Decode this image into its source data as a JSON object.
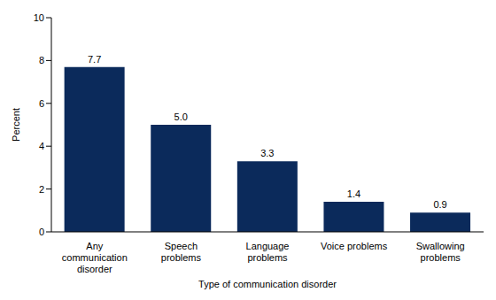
{
  "chart_data": {
    "type": "bar",
    "x_label": "Type of communication disorder",
    "y_label": "Percent",
    "categories": [
      "Any communication disorder",
      "Speech problems",
      "Language problems",
      "Voice problems",
      "Swallowing problems"
    ],
    "values": [
      7.7,
      5.0,
      3.3,
      1.4,
      0.9
    ],
    "value_labels": [
      "7.7",
      "5.0",
      "3.3",
      "1.4",
      "0.9"
    ],
    "data_labels": true,
    "color": "#0b2a5b",
    "ylim": [
      0,
      10
    ],
    "yticks": [
      0,
      2,
      4,
      6,
      8,
      10
    ],
    "grid": false
  }
}
